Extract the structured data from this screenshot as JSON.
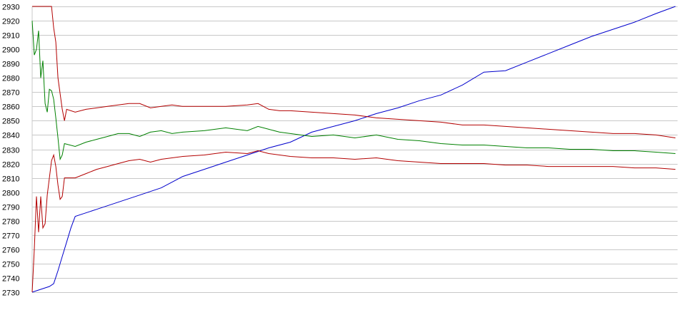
{
  "chart_data": {
    "type": "line",
    "title": "",
    "xlabel": "",
    "ylabel": "",
    "ylim": [
      2730,
      2930
    ],
    "xlim": [
      0,
      300
    ],
    "yticks": [
      "2930",
      "2920",
      "2910",
      "2900",
      "2890",
      "2880",
      "2870",
      "2860",
      "2850",
      "2840",
      "2830",
      "2820",
      "2810",
      "2800",
      "2790",
      "2780",
      "2770",
      "2760",
      "2750",
      "2740",
      "2730"
    ],
    "grid": true,
    "legend": "none",
    "series": [
      {
        "color": "#0000cc",
        "points": [
          [
            0,
            2730
          ],
          [
            4,
            2732
          ],
          [
            8,
            2734
          ],
          [
            10,
            2736
          ],
          [
            12,
            2745
          ],
          [
            14,
            2755
          ],
          [
            16,
            2765
          ],
          [
            18,
            2775
          ],
          [
            20,
            2783
          ],
          [
            24,
            2785
          ],
          [
            30,
            2788
          ],
          [
            40,
            2793
          ],
          [
            50,
            2798
          ],
          [
            60,
            2803
          ],
          [
            70,
            2811
          ],
          [
            80,
            2816
          ],
          [
            90,
            2821
          ],
          [
            100,
            2826
          ],
          [
            110,
            2831
          ],
          [
            120,
            2835
          ],
          [
            130,
            2842
          ],
          [
            140,
            2846
          ],
          [
            150,
            2850
          ],
          [
            160,
            2855
          ],
          [
            170,
            2859
          ],
          [
            180,
            2864
          ],
          [
            190,
            2868
          ],
          [
            200,
            2875
          ],
          [
            210,
            2884
          ],
          [
            220,
            2885
          ],
          [
            230,
            2891
          ],
          [
            240,
            2897
          ],
          [
            250,
            2903
          ],
          [
            260,
            2909
          ],
          [
            270,
            2914
          ],
          [
            280,
            2919
          ],
          [
            290,
            2925
          ],
          [
            299,
            2930
          ]
        ]
      },
      {
        "color": "#008000",
        "points": [
          [
            0,
            2920
          ],
          [
            1,
            2896
          ],
          [
            2,
            2900
          ],
          [
            3,
            2913
          ],
          [
            4,
            2880
          ],
          [
            5,
            2892
          ],
          [
            6,
            2862
          ],
          [
            7,
            2856
          ],
          [
            8,
            2872
          ],
          [
            9,
            2871
          ],
          [
            10,
            2865
          ],
          [
            11,
            2852
          ],
          [
            12,
            2838
          ],
          [
            13,
            2823
          ],
          [
            14,
            2826
          ],
          [
            15,
            2834
          ],
          [
            20,
            2832
          ],
          [
            25,
            2835
          ],
          [
            30,
            2837
          ],
          [
            35,
            2839
          ],
          [
            40,
            2841
          ],
          [
            45,
            2841
          ],
          [
            50,
            2839
          ],
          [
            55,
            2842
          ],
          [
            60,
            2843
          ],
          [
            65,
            2841
          ],
          [
            70,
            2842
          ],
          [
            80,
            2843
          ],
          [
            90,
            2845
          ],
          [
            100,
            2843
          ],
          [
            105,
            2846
          ],
          [
            110,
            2844
          ],
          [
            115,
            2842
          ],
          [
            120,
            2841
          ],
          [
            130,
            2839
          ],
          [
            140,
            2840
          ],
          [
            150,
            2838
          ],
          [
            160,
            2840
          ],
          [
            170,
            2837
          ],
          [
            180,
            2836
          ],
          [
            190,
            2834
          ],
          [
            200,
            2833
          ],
          [
            210,
            2833
          ],
          [
            220,
            2832
          ],
          [
            230,
            2831
          ],
          [
            240,
            2831
          ],
          [
            250,
            2830
          ],
          [
            260,
            2830
          ],
          [
            270,
            2829
          ],
          [
            280,
            2829
          ],
          [
            290,
            2828
          ],
          [
            299,
            2827
          ]
        ]
      },
      {
        "color": "#b30000",
        "points": [
          [
            0,
            2930
          ],
          [
            5,
            2930
          ],
          [
            9,
            2930
          ],
          [
            10,
            2915
          ],
          [
            11,
            2905
          ],
          [
            12,
            2880
          ],
          [
            14,
            2858
          ],
          [
            15,
            2850
          ],
          [
            16,
            2858
          ],
          [
            20,
            2856
          ],
          [
            25,
            2858
          ],
          [
            30,
            2859
          ],
          [
            35,
            2860
          ],
          [
            40,
            2861
          ],
          [
            45,
            2862
          ],
          [
            50,
            2862
          ],
          [
            55,
            2859
          ],
          [
            60,
            2860
          ],
          [
            65,
            2861
          ],
          [
            70,
            2860
          ],
          [
            80,
            2860
          ],
          [
            90,
            2860
          ],
          [
            100,
            2861
          ],
          [
            105,
            2862
          ],
          [
            110,
            2858
          ],
          [
            115,
            2857
          ],
          [
            120,
            2857
          ],
          [
            130,
            2856
          ],
          [
            140,
            2855
          ],
          [
            150,
            2854
          ],
          [
            160,
            2852
          ],
          [
            170,
            2851
          ],
          [
            180,
            2850
          ],
          [
            190,
            2849
          ],
          [
            200,
            2847
          ],
          [
            210,
            2847
          ],
          [
            220,
            2846
          ],
          [
            230,
            2845
          ],
          [
            240,
            2844
          ],
          [
            250,
            2843
          ],
          [
            260,
            2842
          ],
          [
            270,
            2841
          ],
          [
            280,
            2841
          ],
          [
            290,
            2840
          ],
          [
            299,
            2838
          ]
        ]
      },
      {
        "color": "#b30000",
        "points": [
          [
            0,
            2730
          ],
          [
            1,
            2760
          ],
          [
            2,
            2797
          ],
          [
            3,
            2772
          ],
          [
            4,
            2797
          ],
          [
            5,
            2775
          ],
          [
            6,
            2778
          ],
          [
            7,
            2798
          ],
          [
            8,
            2810
          ],
          [
            9,
            2822
          ],
          [
            10,
            2826
          ],
          [
            11,
            2818
          ],
          [
            12,
            2805
          ],
          [
            13,
            2795
          ],
          [
            14,
            2797
          ],
          [
            15,
            2810
          ],
          [
            20,
            2810
          ],
          [
            25,
            2813
          ],
          [
            30,
            2816
          ],
          [
            35,
            2818
          ],
          [
            40,
            2820
          ],
          [
            45,
            2822
          ],
          [
            50,
            2823
          ],
          [
            55,
            2821
          ],
          [
            60,
            2823
          ],
          [
            70,
            2825
          ],
          [
            80,
            2826
          ],
          [
            90,
            2828
          ],
          [
            100,
            2827
          ],
          [
            105,
            2829
          ],
          [
            110,
            2827
          ],
          [
            120,
            2825
          ],
          [
            130,
            2824
          ],
          [
            140,
            2824
          ],
          [
            150,
            2823
          ],
          [
            160,
            2824
          ],
          [
            170,
            2822
          ],
          [
            180,
            2821
          ],
          [
            190,
            2820
          ],
          [
            200,
            2820
          ],
          [
            210,
            2820
          ],
          [
            220,
            2819
          ],
          [
            230,
            2819
          ],
          [
            240,
            2818
          ],
          [
            250,
            2818
          ],
          [
            260,
            2818
          ],
          [
            270,
            2818
          ],
          [
            280,
            2817
          ],
          [
            290,
            2817
          ],
          [
            299,
            2816
          ]
        ]
      }
    ]
  }
}
